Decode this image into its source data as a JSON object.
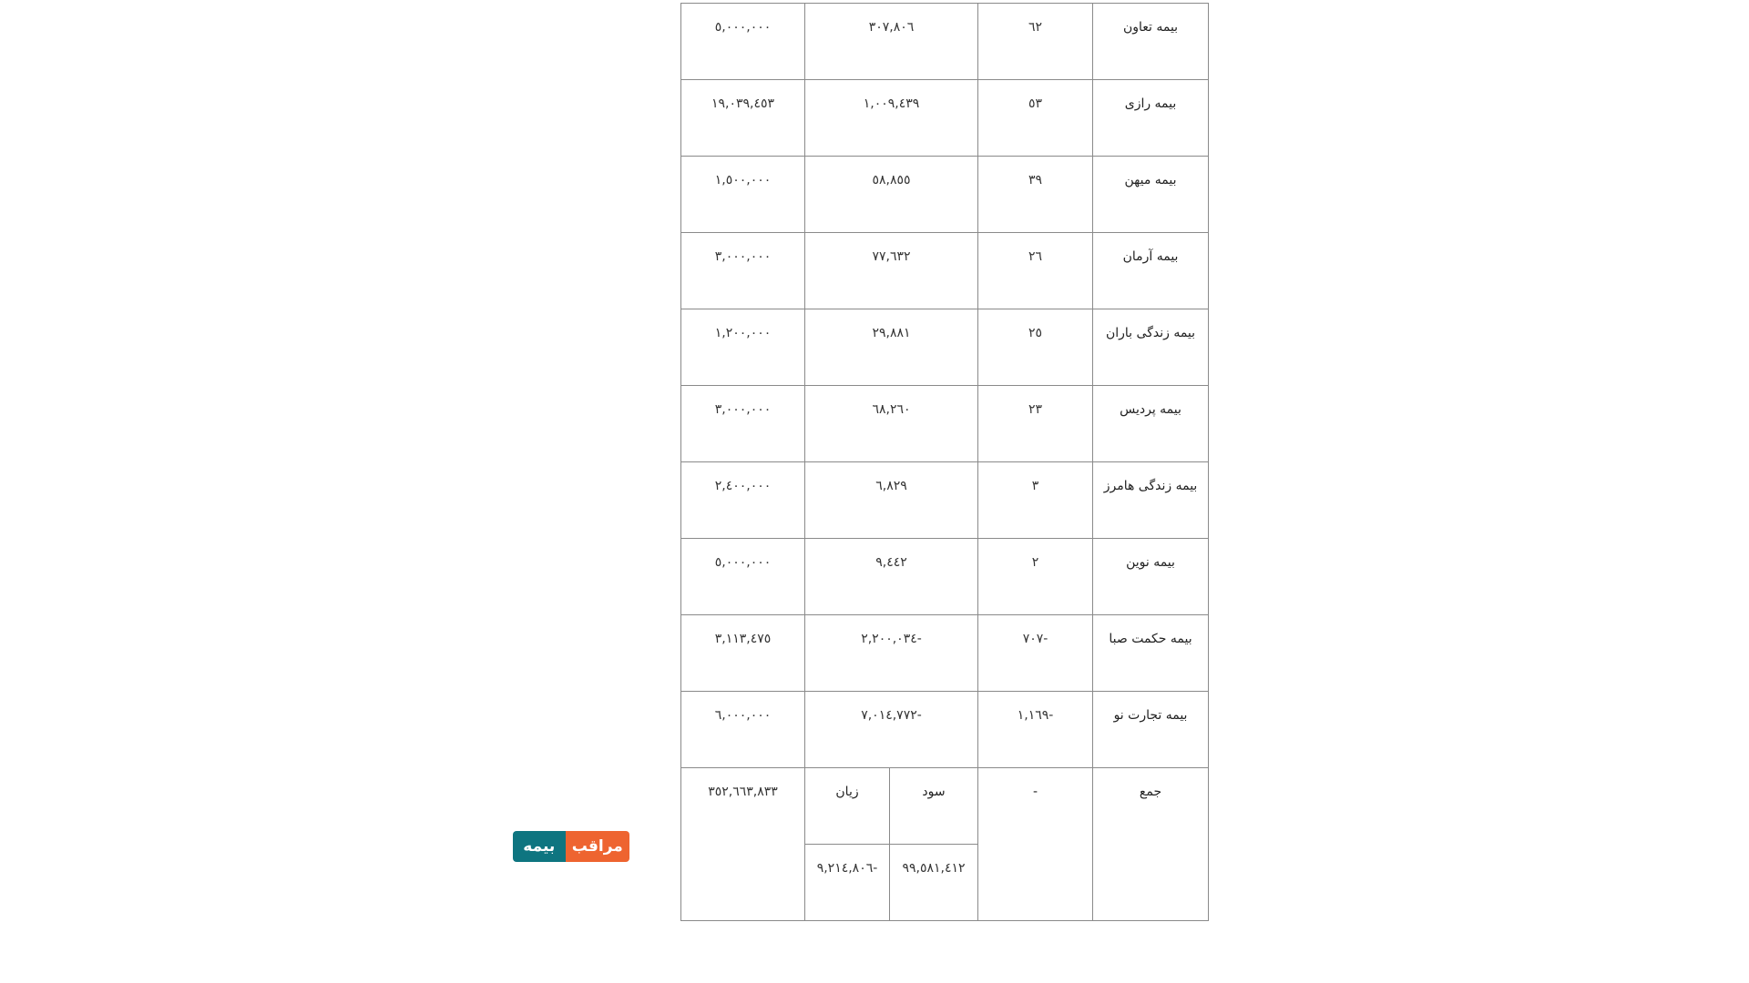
{
  "rows": [
    {
      "name": "بیمه تعاون",
      "count": "٦٢",
      "profit": "٣٠٧,٨٠٦",
      "capital": "٥,٠٠٠,٠٠٠"
    },
    {
      "name": "بیمه رازی",
      "count": "٥٣",
      "profit": "١,٠٠٩,٤٣٩",
      "capital": "١٩,٠٣٩,٤٥٣"
    },
    {
      "name": "بیمه میهن",
      "count": "٣٩",
      "profit": "٥٨,٨٥٥",
      "capital": "١,٥٠٠,٠٠٠"
    },
    {
      "name": "بیمه آرمان",
      "count": "٢٦",
      "profit": "٧٧,٦٣٢",
      "capital": "٣,٠٠٠,٠٠٠"
    },
    {
      "name": "بیمه زندگی باران",
      "count": "٢٥",
      "profit": "٢٩,٨٨١",
      "capital": "١,٢٠٠,٠٠٠"
    },
    {
      "name": "بیمه پردیس",
      "count": "٢٣",
      "profit": "٦٨,٢٦٠",
      "capital": "٣,٠٠٠,٠٠٠"
    },
    {
      "name": "بیمه زندگی هامرز",
      "count": "٣",
      "profit": "٦,٨٢٩",
      "capital": "٢,٤٠٠,٠٠٠"
    },
    {
      "name": "بیمه نوین",
      "count": "٢",
      "profit": "٩,٤٤٢",
      "capital": "٥,٠٠٠,٠٠٠"
    },
    {
      "name": "بیمه حکمت صبا",
      "count": "-٧٠٧",
      "profit": "-٢,٢٠٠,٠٣٤",
      "capital": "٣,١١٣,٤٧٥"
    },
    {
      "name": "بیمه تجارت نو",
      "count": "-١,١٦٩",
      "profit": "-٧,٠١٤,٧٧٢",
      "capital": "٦,٠٠٠,٠٠٠"
    }
  ],
  "total": {
    "label": "جمع",
    "count": "-",
    "profit_label": "سود",
    "loss_label": "زیان",
    "profit": "٩٩,٥٨١,٤١٢",
    "loss": "-٩,٢١٤,٨٠٦",
    "capital": "٣٥٢,٦٦٣,٨٣٣"
  },
  "logo": {
    "text_left": "بیمه",
    "text_right": "مراقب",
    "colors": {
      "teal": "#0e7580",
      "orange": "#ee6430"
    }
  }
}
